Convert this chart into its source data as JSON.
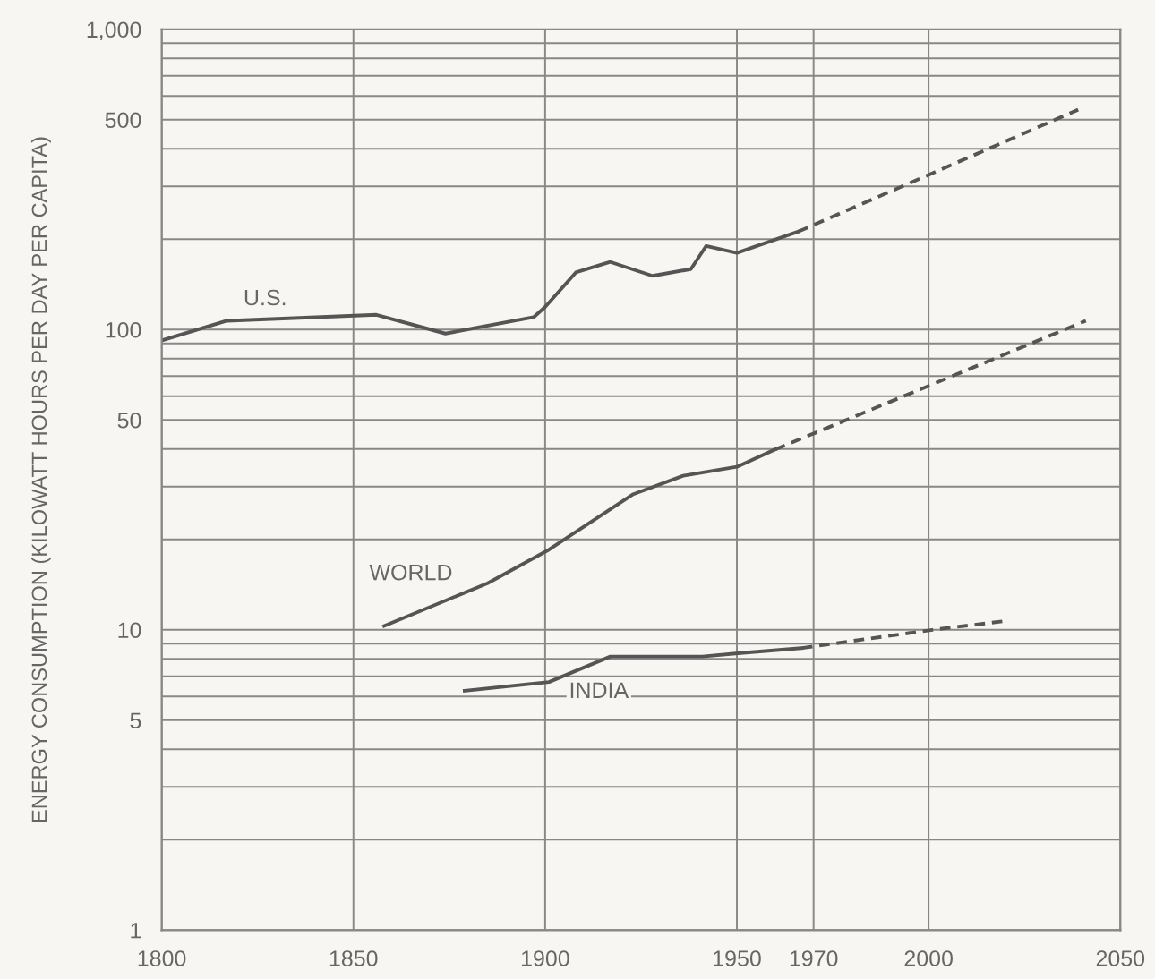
{
  "chart_data": {
    "type": "line",
    "ylabel": "ENERGY CONSUMPTION (KILOWATT HOURS PER DAY PER CAPITA)",
    "log": "y",
    "grid": true,
    "marker": "none",
    "xlim": [
      1800,
      2050
    ],
    "xticks": [
      1800,
      1850,
      1900,
      1950,
      1970,
      2000,
      2050
    ],
    "ylim": [
      1,
      1000
    ],
    "yticks": [
      1,
      {
        "value": 2,
        "label": null
      },
      {
        "value": 3,
        "label": null
      },
      {
        "value": 4,
        "label": null
      },
      5,
      {
        "value": 6,
        "label": null
      },
      {
        "value": 7,
        "label": null
      },
      {
        "value": 8,
        "label": null
      },
      {
        "value": 9,
        "label": null
      },
      10,
      {
        "value": 20,
        "label": null
      },
      {
        "value": 30,
        "label": null
      },
      {
        "value": 40,
        "label": null
      },
      50,
      {
        "value": 60,
        "label": null
      },
      {
        "value": 70,
        "label": null
      },
      {
        "value": 80,
        "label": null
      },
      {
        "value": 90,
        "label": null
      },
      100,
      {
        "value": 200,
        "label": null
      },
      {
        "value": 300,
        "label": null
      },
      {
        "value": 400,
        "label": null
      },
      500,
      {
        "value": 600,
        "label": null
      },
      {
        "value": 700,
        "label": null
      },
      {
        "value": 800,
        "label": null
      },
      {
        "value": 900,
        "label": null
      },
      {
        "value": 1000,
        "label": "1,000"
      }
    ],
    "series": [
      {
        "color": "#555555",
        "line_style": "solid",
        "x": [
          1800,
          1817,
          1856,
          1874,
          1897,
          1900,
          1908,
          1917,
          1928,
          1938,
          1942,
          1950,
          1966
        ],
        "values": [
          92,
          107,
          112,
          97,
          110,
          119,
          155,
          168,
          151,
          159,
          190,
          180,
          212
        ]
      },
      {
        "color": "#555555",
        "line_style": "dashed",
        "x": [
          1966,
          2039
        ],
        "values": [
          212,
          540
        ]
      },
      {
        "color": "#555555",
        "line_style": "solid",
        "x": [
          1858,
          1885,
          1901,
          1923,
          1936,
          1950,
          1960
        ],
        "values": [
          10.3,
          14.3,
          18.5,
          28.3,
          32.6,
          34.9,
          39.9
        ]
      },
      {
        "color": "#555555",
        "line_style": "dashed",
        "x": [
          1960,
          2041
        ],
        "values": [
          39.9,
          107
        ]
      },
      {
        "color": "#555555",
        "line_style": "solid",
        "x": [
          1879,
          1901,
          1917,
          1941,
          1951,
          1967
        ],
        "values": [
          6.27,
          6.7,
          8.15,
          8.15,
          8.37,
          8.7
        ]
      },
      {
        "color": "#555555",
        "line_style": "dashed",
        "x": [
          1967,
          2001,
          2020
        ],
        "values": [
          8.7,
          10,
          10.7
        ]
      }
    ],
    "annotations": [
      {
        "text": "U.S.",
        "x": 1827,
        "y": 126
      },
      "WORLD",
      {
        "text": "INDIA",
        "x": 1914,
        "y": 6.2
      }
    ]
  }
}
